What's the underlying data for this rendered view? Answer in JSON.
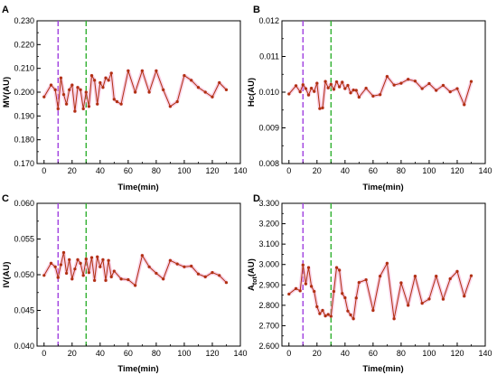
{
  "chart_data": [
    {
      "panel": "A",
      "type": "line",
      "xlabel": "Time(min)",
      "ylabel": "MV(AU)",
      "xlim": [
        -5,
        140
      ],
      "ylim": [
        0.17,
        0.23
      ],
      "xticks": [
        0,
        20,
        40,
        60,
        80,
        100,
        120,
        140
      ],
      "yticks": [
        0.17,
        0.18,
        0.19,
        0.2,
        0.21,
        0.22,
        0.23
      ],
      "ytick_labels": [
        "0.170",
        "0.180",
        "0.190",
        "0.200",
        "0.210",
        "0.220",
        "0.230"
      ],
      "vlines": [
        {
          "x": 10,
          "color": "#a040e0"
        },
        {
          "x": 30,
          "color": "#30b030"
        }
      ],
      "series": [
        {
          "color": "#b03010",
          "x": [
            0,
            5,
            8,
            10,
            12,
            14,
            16,
            18,
            20,
            22,
            24,
            26,
            28,
            30,
            32,
            34,
            36,
            38,
            40,
            42,
            44,
            46,
            48,
            50,
            52,
            55,
            60,
            65,
            70,
            75,
            80,
            85,
            90,
            95,
            100,
            105,
            110,
            115,
            120,
            125,
            130
          ],
          "y": [
            0.198,
            0.203,
            0.201,
            0.193,
            0.206,
            0.199,
            0.195,
            0.201,
            0.203,
            0.192,
            0.202,
            0.201,
            0.193,
            0.2,
            0.194,
            0.207,
            0.205,
            0.195,
            0.204,
            0.202,
            0.206,
            0.205,
            0.208,
            0.197,
            0.196,
            0.195,
            0.209,
            0.2,
            0.209,
            0.2,
            0.209,
            0.201,
            0.194,
            0.196,
            0.207,
            0.205,
            0.202,
            0.2,
            0.198,
            0.204,
            0.201
          ]
        }
      ]
    },
    {
      "panel": "B",
      "type": "line",
      "xlabel": "Time(min)",
      "ylabel": "Hc(AU)",
      "xlim": [
        -5,
        140
      ],
      "ylim": [
        0.008,
        0.012
      ],
      "xticks": [
        0,
        20,
        40,
        60,
        80,
        100,
        120,
        140
      ],
      "yticks": [
        0.008,
        0.009,
        0.01,
        0.011,
        0.012
      ],
      "ytick_labels": [
        "0.008",
        "0.009",
        "0.010",
        "0.011",
        "0.012"
      ],
      "vlines": [
        {
          "x": 10,
          "color": "#a040e0"
        },
        {
          "x": 30,
          "color": "#30b030"
        }
      ],
      "series": [
        {
          "color": "#b03010",
          "x": [
            0,
            5,
            8,
            10,
            12,
            14,
            16,
            18,
            20,
            22,
            24,
            26,
            28,
            30,
            32,
            34,
            36,
            38,
            40,
            42,
            44,
            46,
            48,
            50,
            55,
            60,
            65,
            70,
            75,
            80,
            85,
            90,
            95,
            100,
            105,
            110,
            115,
            120,
            125,
            130
          ],
          "y": [
            0.00995,
            0.01018,
            0.01001,
            0.01021,
            0.0101,
            0.00992,
            0.01011,
            0.01002,
            0.01025,
            0.00954,
            0.00956,
            0.0103,
            0.01012,
            0.01022,
            0.01008,
            0.01029,
            0.01015,
            0.01028,
            0.0101,
            0.01019,
            0.00998,
            0.01006,
            0.01005,
            0.00986,
            0.01011,
            0.00989,
            0.00993,
            0.01044,
            0.0102,
            0.01025,
            0.01036,
            0.01031,
            0.0101,
            0.01024,
            0.01005,
            0.01019,
            0.01001,
            0.0101,
            0.00965,
            0.0103
          ]
        }
      ]
    },
    {
      "panel": "C",
      "type": "line",
      "xlabel": "Time(min)",
      "ylabel": "IV(AU)",
      "xlim": [
        -5,
        140
      ],
      "ylim": [
        0.04,
        0.06
      ],
      "xticks": [
        0,
        20,
        40,
        60,
        80,
        100,
        120,
        140
      ],
      "yticks": [
        0.04,
        0.045,
        0.05,
        0.055,
        0.06
      ],
      "ytick_labels": [
        "0.040",
        "0.045",
        "0.050",
        "0.055",
        "0.060"
      ],
      "vlines": [
        {
          "x": 10,
          "color": "#a040e0"
        },
        {
          "x": 30,
          "color": "#30b030"
        }
      ],
      "series": [
        {
          "color": "#b03010",
          "x": [
            0,
            5,
            8,
            10,
            12,
            14,
            16,
            18,
            20,
            22,
            24,
            26,
            28,
            30,
            32,
            34,
            36,
            38,
            40,
            42,
            44,
            46,
            48,
            50,
            55,
            60,
            65,
            70,
            75,
            80,
            85,
            90,
            95,
            100,
            105,
            110,
            115,
            120,
            125,
            130
          ],
          "y": [
            0.0499,
            0.0516,
            0.0511,
            0.0496,
            0.0514,
            0.0531,
            0.0502,
            0.0521,
            0.0494,
            0.0508,
            0.0521,
            0.0516,
            0.0499,
            0.0522,
            0.0503,
            0.0524,
            0.0492,
            0.0525,
            0.0511,
            0.0521,
            0.0492,
            0.052,
            0.0497,
            0.0505,
            0.0494,
            0.0493,
            0.0485,
            0.0527,
            0.0511,
            0.0502,
            0.0494,
            0.052,
            0.0515,
            0.0511,
            0.0512,
            0.0501,
            0.0497,
            0.0503,
            0.0499,
            0.0489
          ]
        }
      ]
    },
    {
      "panel": "D",
      "type": "line",
      "xlabel": "Time(min)",
      "ylabel": "A",
      "ylabel_sub": "tot",
      "ylabel_unit": "(AU)",
      "xlim": [
        -5,
        140
      ],
      "ylim": [
        2.6,
        3.3
      ],
      "xticks": [
        0,
        20,
        40,
        60,
        80,
        100,
        120,
        140
      ],
      "yticks": [
        2.6,
        2.7,
        2.8,
        2.9,
        3.0,
        3.1,
        3.2,
        3.3
      ],
      "ytick_labels": [
        "2.600",
        "2.700",
        "2.800",
        "2.900",
        "3.000",
        "3.100",
        "3.200",
        "3.300"
      ],
      "vlines": [
        {
          "x": 10,
          "color": "#a040e0"
        },
        {
          "x": 30,
          "color": "#30b030"
        }
      ],
      "series": [
        {
          "color": "#b03010",
          "x": [
            0,
            5,
            8,
            10,
            12,
            14,
            16,
            18,
            20,
            22,
            24,
            26,
            28,
            30,
            32,
            34,
            36,
            38,
            40,
            42,
            44,
            46,
            48,
            50,
            55,
            60,
            65,
            70,
            75,
            80,
            85,
            90,
            95,
            100,
            105,
            110,
            115,
            120,
            125,
            130
          ],
          "y": [
            2.855,
            2.882,
            2.871,
            2.998,
            2.905,
            2.985,
            2.893,
            2.868,
            2.793,
            2.759,
            2.775,
            2.748,
            2.755,
            2.746,
            2.868,
            2.985,
            2.972,
            2.858,
            2.837,
            2.772,
            2.753,
            2.734,
            2.836,
            2.912,
            2.925,
            2.775,
            2.943,
            3.006,
            2.734,
            2.91,
            2.8,
            2.943,
            2.81,
            2.831,
            2.943,
            2.83,
            2.93,
            2.966,
            2.845,
            2.945
          ]
        }
      ]
    }
  ]
}
